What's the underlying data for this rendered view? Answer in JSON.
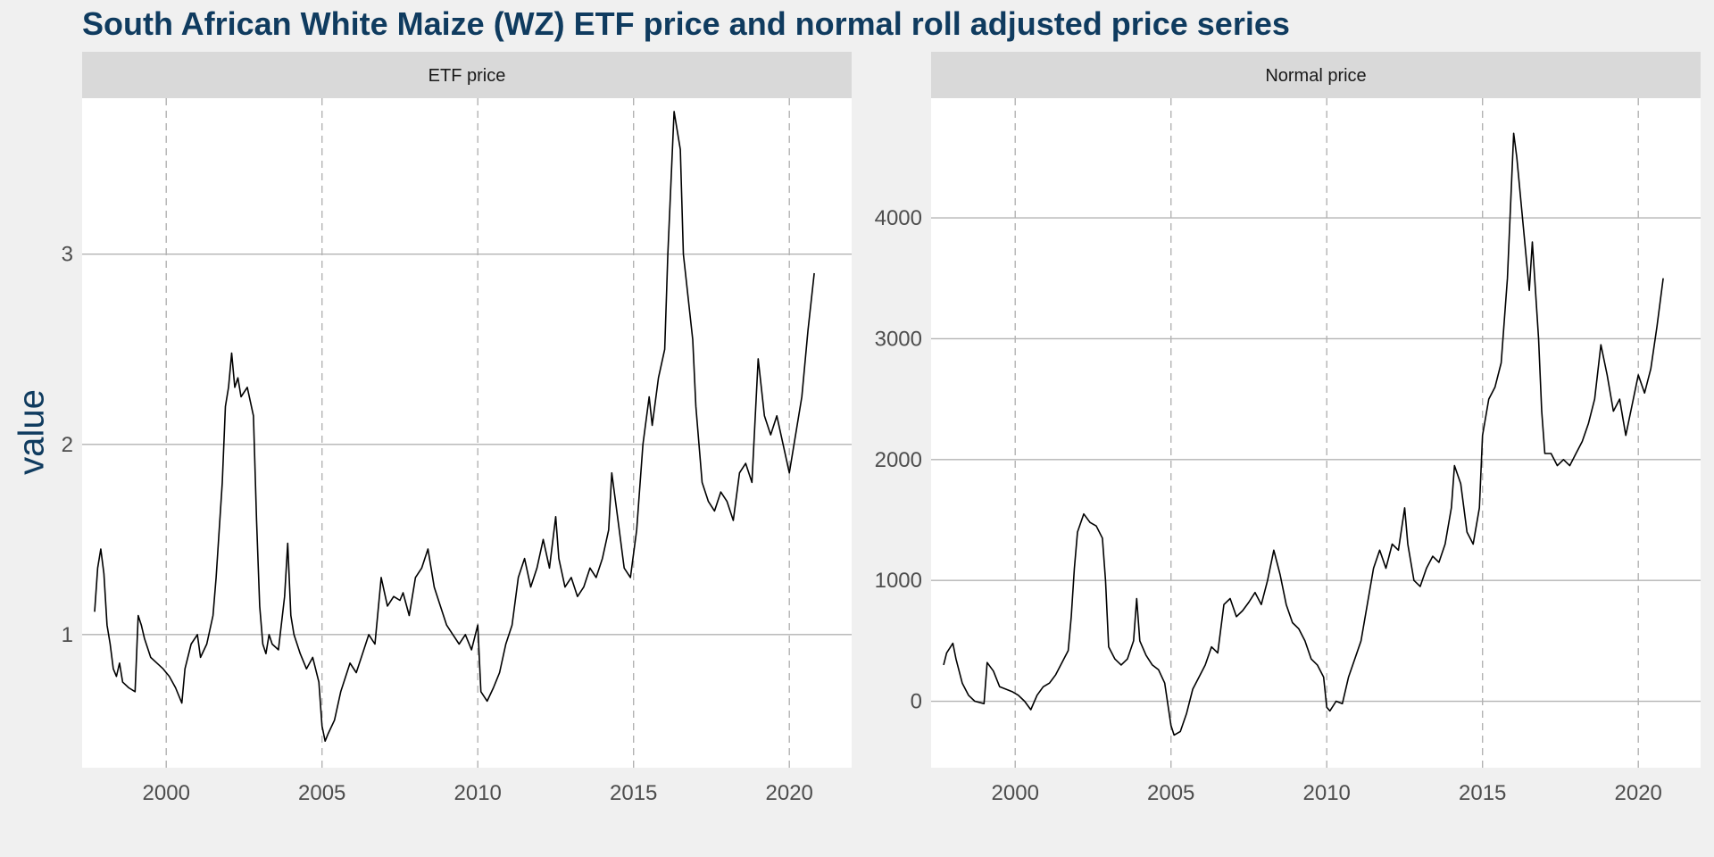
{
  "figure": {
    "title": "South African White Maize (WZ) ETF price and normal roll adjusted price series",
    "ylabel": "value",
    "line_color": "#000000",
    "title_color": "#0f3b5f"
  },
  "chart_data": [
    {
      "type": "line",
      "facet": "ETF price",
      "xlabel": "",
      "ylabel": "value",
      "x_ticks": [
        2000,
        2005,
        2010,
        2015,
        2020
      ],
      "y_ticks": [
        1,
        2,
        3
      ],
      "xlim": [
        1997.3,
        2022.0
      ],
      "ylim": [
        0.3,
        3.82
      ],
      "grid": {
        "x": "dashed",
        "y": "solid"
      },
      "series": [
        {
          "x": [
            1997.7,
            1997.8,
            1997.9,
            1998.0,
            1998.1,
            1998.2,
            1998.3,
            1998.4,
            1998.5,
            1998.6,
            1998.8,
            1999.0,
            1999.1,
            1999.2,
            1999.3,
            1999.5,
            1999.7,
            1999.9,
            2000.1,
            2000.3,
            2000.5,
            2000.6,
            2000.8,
            2001.0,
            2001.1,
            2001.3,
            2001.5,
            2001.6,
            2001.8,
            2001.9,
            2002.0,
            2002.1,
            2002.2,
            2002.3,
            2002.4,
            2002.6,
            2002.8,
            2002.9,
            2003.0,
            2003.1,
            2003.2,
            2003.3,
            2003.4,
            2003.6,
            2003.8,
            2003.9,
            2004.0,
            2004.1,
            2004.2,
            2004.3,
            2004.5,
            2004.7,
            2004.9,
            2005.0,
            2005.1,
            2005.2,
            2005.4,
            2005.6,
            2005.9,
            2006.1,
            2006.3,
            2006.5,
            2006.7,
            2006.9,
            2007.1,
            2007.3,
            2007.5,
            2007.6,
            2007.8,
            2008.0,
            2008.2,
            2008.4,
            2008.5,
            2008.6,
            2008.8,
            2009.0,
            2009.2,
            2009.4,
            2009.6,
            2009.8,
            2010.0,
            2010.1,
            2010.3,
            2010.5,
            2010.7,
            2010.9,
            2011.1,
            2011.3,
            2011.5,
            2011.7,
            2011.9,
            2012.1,
            2012.3,
            2012.5,
            2012.6,
            2012.8,
            2013.0,
            2013.2,
            2013.4,
            2013.6,
            2013.8,
            2014.0,
            2014.2,
            2014.3,
            2014.5,
            2014.7,
            2014.9,
            2015.1,
            2015.3,
            2015.5,
            2015.6,
            2015.8,
            2016.0,
            2016.1,
            2016.3,
            2016.5,
            2016.6,
            2016.8,
            2016.9,
            2017.0,
            2017.2,
            2017.4,
            2017.6,
            2017.8,
            2018.0,
            2018.2,
            2018.4,
            2018.6,
            2018.8,
            2019.0,
            2019.2,
            2019.4,
            2019.6,
            2019.8,
            2020.0,
            2020.2,
            2020.4,
            2020.6,
            2020.8
          ],
          "y": [
            1.12,
            1.35,
            1.45,
            1.32,
            1.05,
            0.95,
            0.82,
            0.78,
            0.85,
            0.75,
            0.72,
            0.7,
            1.1,
            1.05,
            0.98,
            0.88,
            0.85,
            0.82,
            0.78,
            0.72,
            0.64,
            0.82,
            0.95,
            1.0,
            0.88,
            0.95,
            1.1,
            1.3,
            1.8,
            2.2,
            2.3,
            2.48,
            2.3,
            2.35,
            2.25,
            2.3,
            2.15,
            1.6,
            1.15,
            0.95,
            0.9,
            1.0,
            0.95,
            0.92,
            1.2,
            1.48,
            1.1,
            1.0,
            0.95,
            0.9,
            0.82,
            0.88,
            0.75,
            0.52,
            0.44,
            0.48,
            0.55,
            0.7,
            0.85,
            0.8,
            0.9,
            1.0,
            0.95,
            1.3,
            1.15,
            1.2,
            1.18,
            1.22,
            1.1,
            1.3,
            1.35,
            1.45,
            1.35,
            1.25,
            1.15,
            1.05,
            1.0,
            0.95,
            1.0,
            0.92,
            1.05,
            0.7,
            0.65,
            0.72,
            0.8,
            0.95,
            1.05,
            1.3,
            1.4,
            1.25,
            1.35,
            1.5,
            1.35,
            1.62,
            1.4,
            1.25,
            1.3,
            1.2,
            1.25,
            1.35,
            1.3,
            1.4,
            1.55,
            1.85,
            1.6,
            1.35,
            1.3,
            1.55,
            2.0,
            2.25,
            2.1,
            2.35,
            2.5,
            3.0,
            3.75,
            3.55,
            3.0,
            2.7,
            2.55,
            2.2,
            1.8,
            1.7,
            1.65,
            1.75,
            1.7,
            1.6,
            1.85,
            1.9,
            1.8,
            2.45,
            2.15,
            2.05,
            2.15,
            2.0,
            1.85,
            2.05,
            2.25,
            2.6,
            2.9
          ]
        }
      ]
    },
    {
      "type": "line",
      "facet": "Normal price",
      "xlabel": "",
      "ylabel": "value",
      "x_ticks": [
        2000,
        2005,
        2010,
        2015,
        2020
      ],
      "y_ticks": [
        0,
        1000,
        2000,
        3000,
        4000
      ],
      "xlim": [
        1997.3,
        2022.0
      ],
      "ylim": [
        -550,
        4990
      ],
      "grid": {
        "x": "dashed",
        "y": "solid"
      },
      "series": [
        {
          "x": [
            1997.7,
            1997.8,
            1998.0,
            1998.1,
            1998.3,
            1998.5,
            1998.7,
            1999.0,
            1999.1,
            1999.3,
            1999.5,
            1999.7,
            1999.9,
            2000.1,
            2000.3,
            2000.5,
            2000.7,
            2000.9,
            2001.1,
            2001.3,
            2001.5,
            2001.7,
            2001.8,
            2001.9,
            2002.0,
            2002.2,
            2002.4,
            2002.6,
            2002.8,
            2002.9,
            2003.0,
            2003.2,
            2003.4,
            2003.6,
            2003.8,
            2003.9,
            2004.0,
            2004.2,
            2004.4,
            2004.6,
            2004.8,
            2005.0,
            2005.1,
            2005.3,
            2005.5,
            2005.7,
            2005.9,
            2006.1,
            2006.3,
            2006.5,
            2006.7,
            2006.9,
            2007.1,
            2007.3,
            2007.5,
            2007.7,
            2007.9,
            2008.1,
            2008.3,
            2008.5,
            2008.7,
            2008.9,
            2009.1,
            2009.3,
            2009.5,
            2009.7,
            2009.9,
            2010.0,
            2010.1,
            2010.3,
            2010.5,
            2010.7,
            2010.9,
            2011.1,
            2011.3,
            2011.5,
            2011.7,
            2011.9,
            2012.1,
            2012.3,
            2012.5,
            2012.6,
            2012.8,
            2013.0,
            2013.2,
            2013.4,
            2013.6,
            2013.8,
            2014.0,
            2014.1,
            2014.3,
            2014.5,
            2014.7,
            2014.9,
            2015.0,
            2015.2,
            2015.4,
            2015.6,
            2015.8,
            2016.0,
            2016.1,
            2016.3,
            2016.5,
            2016.6,
            2016.8,
            2016.9,
            2017.0,
            2017.2,
            2017.4,
            2017.6,
            2017.8,
            2018.0,
            2018.2,
            2018.4,
            2018.6,
            2018.8,
            2019.0,
            2019.2,
            2019.4,
            2019.6,
            2019.8,
            2020.0,
            2020.2,
            2020.4,
            2020.6,
            2020.8
          ],
          "y": [
            300,
            400,
            480,
            350,
            150,
            50,
            0,
            -20,
            320,
            250,
            120,
            100,
            80,
            50,
            0,
            -70,
            50,
            120,
            150,
            220,
            320,
            420,
            700,
            1100,
            1400,
            1550,
            1480,
            1450,
            1350,
            1000,
            450,
            350,
            300,
            350,
            500,
            850,
            500,
            380,
            300,
            260,
            150,
            -200,
            -280,
            -250,
            -100,
            100,
            200,
            300,
            450,
            400,
            800,
            850,
            700,
            750,
            820,
            900,
            800,
            1000,
            1250,
            1050,
            800,
            650,
            600,
            500,
            350,
            300,
            200,
            -50,
            -80,
            0,
            -20,
            200,
            350,
            500,
            800,
            1100,
            1250,
            1100,
            1300,
            1250,
            1600,
            1300,
            1000,
            950,
            1100,
            1200,
            1150,
            1300,
            1600,
            1950,
            1800,
            1400,
            1300,
            1600,
            2200,
            2500,
            2600,
            2800,
            3500,
            4700,
            4500,
            3950,
            3400,
            3800,
            3000,
            2400,
            2050,
            2050,
            1950,
            2000,
            1950,
            2050,
            2150,
            2300,
            2500,
            2950,
            2700,
            2400,
            2500,
            2200,
            2450,
            2700,
            2550,
            2750,
            3100,
            3500
          ]
        }
      ]
    }
  ]
}
